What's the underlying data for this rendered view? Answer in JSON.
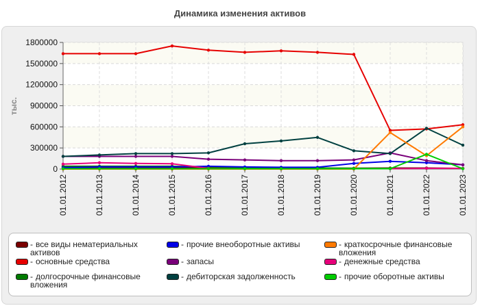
{
  "chart_data": {
    "type": "line",
    "title": "Динамика изменения активов",
    "ylabel": "тыс.",
    "xlabel": "",
    "ylim": [
      0,
      1800000
    ],
    "yticks": [
      0,
      300000,
      600000,
      900000,
      1200000,
      1500000,
      1800000
    ],
    "grid": true,
    "legend_position": "bottom",
    "categories": [
      "01.01.2012",
      "01.01.2013",
      "01.01.2014",
      "01.01.2015",
      "01.01.2016",
      "01.01.2017",
      "01.01.2018",
      "01.01.2019",
      "01.01.2020",
      "01.01.2021",
      "01.01.2022",
      "01.01.2023"
    ],
    "series": [
      {
        "name": "все виды нематериальных активов",
        "color": "#7a0000",
        "values": [
          20000,
          20000,
          20000,
          20000,
          20000,
          15000,
          12000,
          12000,
          12000,
          15000,
          15000,
          10000
        ]
      },
      {
        "name": "основные средства",
        "color": "#e60000",
        "values": [
          1640000,
          1640000,
          1640000,
          1750000,
          1690000,
          1660000,
          1680000,
          1660000,
          1630000,
          550000,
          570000,
          630000
        ]
      },
      {
        "name": "долгосрочные финансовые вложения",
        "color": "#007a00",
        "values": [
          40000,
          40000,
          40000,
          40000,
          30000,
          20000,
          15000,
          15000,
          10000,
          10000,
          10000,
          10000
        ]
      },
      {
        "name": "прочие внеоборотные активы",
        "color": "#0000e6",
        "values": [
          20000,
          30000,
          30000,
          30000,
          40000,
          30000,
          25000,
          25000,
          80000,
          110000,
          90000,
          60000
        ]
      },
      {
        "name": "запасы",
        "color": "#7a007a",
        "values": [
          180000,
          180000,
          180000,
          180000,
          140000,
          130000,
          120000,
          120000,
          130000,
          230000,
          120000,
          60000
        ]
      },
      {
        "name": "дебиторская задолженность",
        "color": "#004040",
        "values": [
          180000,
          200000,
          220000,
          220000,
          230000,
          360000,
          400000,
          450000,
          260000,
          220000,
          580000,
          340000
        ]
      },
      {
        "name": "краткосрочные финансовые вложения",
        "color": "#ff7a00",
        "values": [
          0,
          0,
          0,
          0,
          0,
          0,
          0,
          0,
          0,
          520000,
          190000,
          600000
        ]
      },
      {
        "name": "денежные средства",
        "color": "#e6007a",
        "values": [
          70000,
          90000,
          80000,
          75000,
          10000,
          5000,
          5000,
          5000,
          5000,
          5000,
          10000,
          10000
        ]
      },
      {
        "name": "прочие оборотные активы",
        "color": "#00cc00",
        "values": [
          5000,
          5000,
          5000,
          5000,
          5000,
          5000,
          5000,
          5000,
          5000,
          5000,
          210000,
          5000
        ]
      }
    ]
  }
}
